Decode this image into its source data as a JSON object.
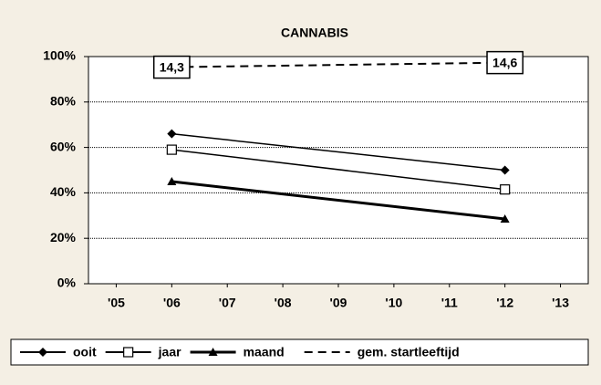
{
  "chart_data": {
    "type": "line",
    "title": "CANNABIS",
    "x": [
      2006,
      2012
    ],
    "xlim": [
      2004.5,
      2013.5
    ],
    "xticks": [
      {
        "value": 2005,
        "label": "'05"
      },
      {
        "value": 2006,
        "label": "'06"
      },
      {
        "value": 2007,
        "label": "'07"
      },
      {
        "value": 2008,
        "label": "'08"
      },
      {
        "value": 2009,
        "label": "'09"
      },
      {
        "value": 2010,
        "label": "'10"
      },
      {
        "value": 2011,
        "label": "'11"
      },
      {
        "value": 2012,
        "label": "'12"
      },
      {
        "value": 2013,
        "label": "'13"
      }
    ],
    "ylim": [
      0,
      100
    ],
    "yticks": [
      {
        "value": 0,
        "label": "0%"
      },
      {
        "value": 20,
        "label": "20%"
      },
      {
        "value": 40,
        "label": "40%"
      },
      {
        "value": 60,
        "label": "60%"
      },
      {
        "value": 80,
        "label": "80%"
      },
      {
        "value": 100,
        "label": "100%"
      }
    ],
    "y2lim": [
      0,
      15
    ],
    "grid": true,
    "legend": "bottom",
    "series": [
      {
        "name": "ooit",
        "color": "#000000",
        "marker": "diamond",
        "linestyle": "solid",
        "values": [
          66,
          50
        ]
      },
      {
        "name": "jaar",
        "color": "#000000",
        "marker": "square",
        "linestyle": "solid",
        "values": [
          59,
          41.5
        ]
      },
      {
        "name": "maand",
        "color": "#000000",
        "marker": "triangle",
        "linestyle": "solid",
        "values": [
          45,
          28.5
        ]
      },
      {
        "name": "gem. startleeftijd",
        "color": "#000000",
        "marker": "none",
        "linestyle": "dashed",
        "axis": "y2",
        "values": [
          14.3,
          14.6
        ],
        "value_labels": [
          "14,3",
          "14,6"
        ]
      }
    ]
  }
}
